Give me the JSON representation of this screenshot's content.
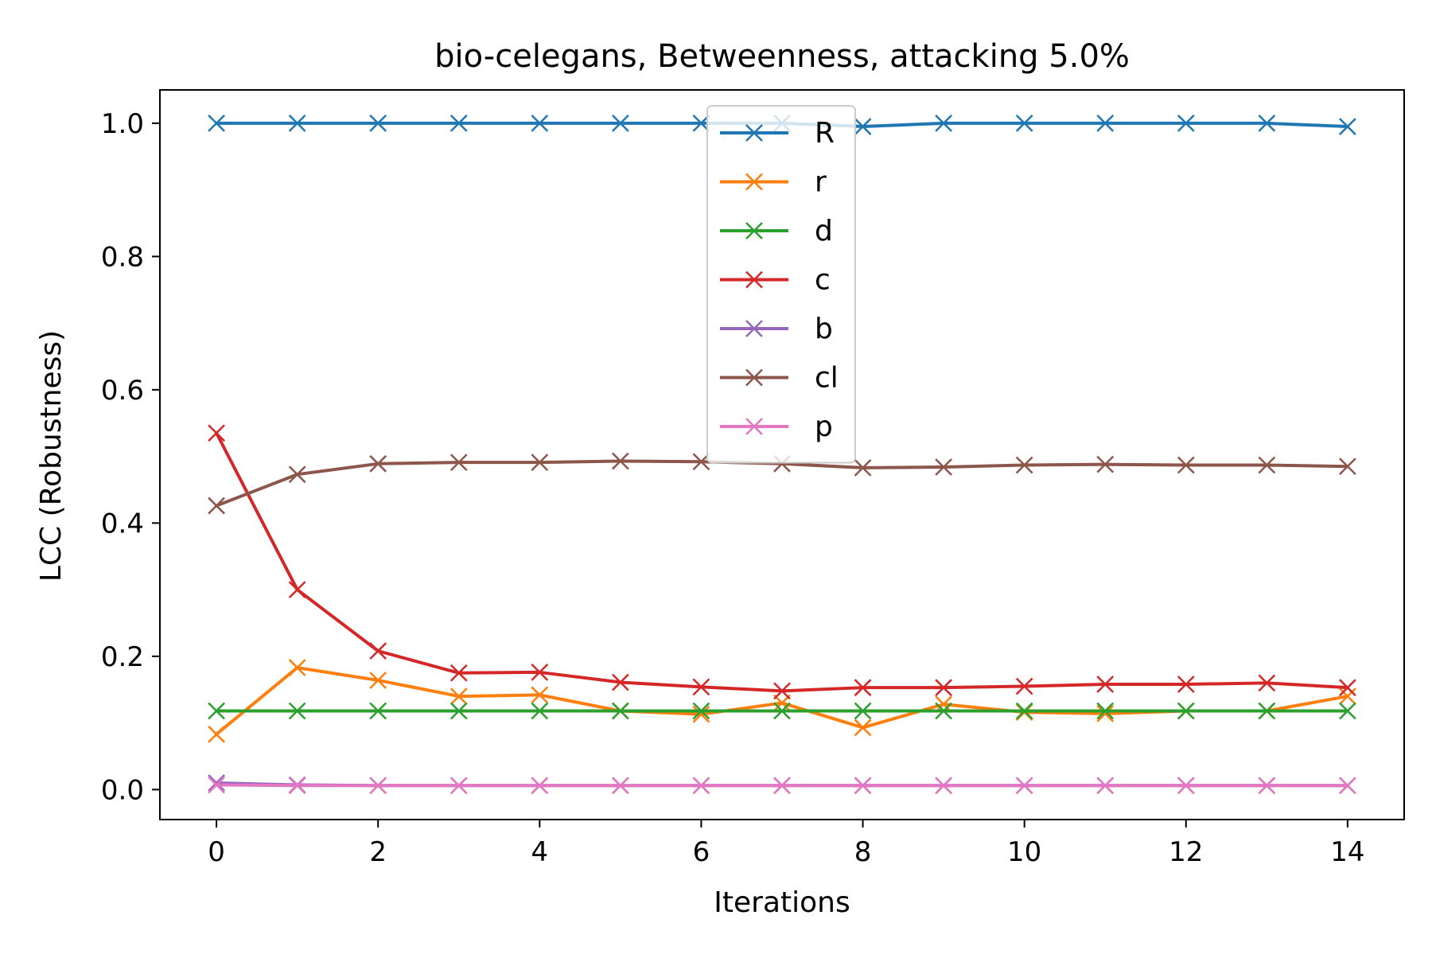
{
  "chart_data": {
    "type": "line",
    "title": "bio-celegans, Betweenness, attacking 5.0%",
    "xlabel": "Iterations",
    "ylabel": "LCC (Robustness)",
    "xlim": [
      -0.7,
      14.7
    ],
    "ylim": [
      -0.045,
      1.05
    ],
    "xticks": [
      0,
      2,
      4,
      6,
      8,
      10,
      12,
      14
    ],
    "xtick_labels": [
      "0",
      "2",
      "4",
      "6",
      "8",
      "10",
      "12",
      "14"
    ],
    "yticks": [
      0.0,
      0.2,
      0.4,
      0.6,
      0.8,
      1.0
    ],
    "ytick_labels": [
      "0.0",
      "0.2",
      "0.4",
      "0.6",
      "0.8",
      "1.0"
    ],
    "grid": false,
    "legend_position": "upper center",
    "marker": "x",
    "x": [
      0,
      1,
      2,
      3,
      4,
      5,
      6,
      7,
      8,
      9,
      10,
      11,
      12,
      13,
      14
    ],
    "series": [
      {
        "name": "R",
        "color": "#1f77b4",
        "values": [
          1.0,
          1.0,
          1.0,
          1.0,
          1.0,
          1.0,
          1.0,
          1.0,
          0.995,
          1.0,
          1.0,
          1.0,
          1.0,
          1.0,
          0.995
        ]
      },
      {
        "name": "r",
        "color": "#ff7f0e",
        "values": [
          0.083,
          0.183,
          0.164,
          0.14,
          0.142,
          0.118,
          0.113,
          0.13,
          0.093,
          0.128,
          0.116,
          0.114,
          0.118,
          0.118,
          0.14
        ]
      },
      {
        "name": "d",
        "color": "#2ca02c",
        "values": [
          0.118,
          0.118,
          0.118,
          0.118,
          0.118,
          0.118,
          0.118,
          0.118,
          0.118,
          0.118,
          0.118,
          0.118,
          0.118,
          0.118,
          0.118
        ]
      },
      {
        "name": "c",
        "color": "#d62728",
        "values": [
          0.535,
          0.3,
          0.208,
          0.175,
          0.176,
          0.161,
          0.154,
          0.148,
          0.153,
          0.153,
          0.155,
          0.158,
          0.158,
          0.16,
          0.153
        ]
      },
      {
        "name": "b",
        "color": "#9467bd",
        "values": [
          0.01,
          0.007,
          0.006,
          0.006,
          0.006,
          0.006,
          0.006,
          0.006,
          0.006,
          0.006,
          0.006,
          0.006,
          0.006,
          0.006,
          0.006
        ]
      },
      {
        "name": "cl",
        "color": "#8c564b",
        "values": [
          0.426,
          0.473,
          0.489,
          0.491,
          0.491,
          0.493,
          0.492,
          0.489,
          0.483,
          0.484,
          0.487,
          0.488,
          0.487,
          0.487,
          0.485
        ]
      },
      {
        "name": "p",
        "color": "#e377c2",
        "values": [
          0.007,
          0.006,
          0.006,
          0.006,
          0.006,
          0.006,
          0.006,
          0.006,
          0.006,
          0.006,
          0.006,
          0.006,
          0.006,
          0.006,
          0.006
        ]
      }
    ]
  }
}
